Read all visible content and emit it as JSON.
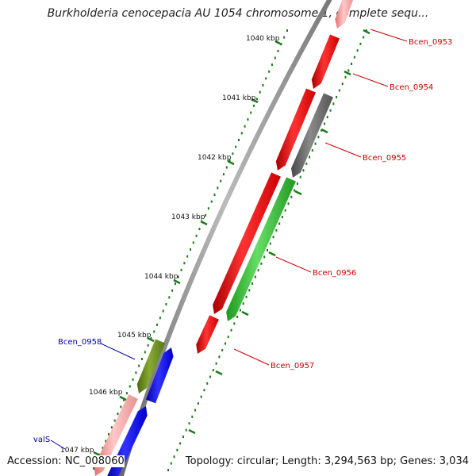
{
  "title": "Burkholderia cenocepacia AU 1054 chromosome 1, complete sequ...",
  "footer": {
    "accession_label": "Accession:",
    "accession": "NC_008060",
    "topology_text": "Topology: circular; Length: 3,294,563 bp; Genes: 3,034"
  },
  "colors": {
    "backbone": "#888888",
    "tick": "#1a7a1a",
    "label_forward": "#cc0000",
    "label_reverse": "#0000aa",
    "red_gene": "#ee1111",
    "light_red_gene": "#f4a0a0",
    "gray_gene": "#707070",
    "green_gene": "#33bb33",
    "olive_gene": "#668822",
    "blue_gene": "#1111ee"
  },
  "ticks": [
    {
      "label": "1040 kbp"
    },
    {
      "label": "1041 kbp"
    },
    {
      "label": "1042 kbp"
    },
    {
      "label": "1043 kbp"
    },
    {
      "label": "1044 kbp"
    },
    {
      "label": "1045 kbp"
    },
    {
      "label": "1046 kbp"
    },
    {
      "label": "1047 kbp"
    }
  ],
  "genes": [
    {
      "name": "Bcen_0953",
      "strand": "forward",
      "color": "light_red_gene"
    },
    {
      "name": "Bcen_0954",
      "strand": "forward",
      "color": "red_gene"
    },
    {
      "name": "Bcen_0955",
      "strand": "forward",
      "color": "gray_gene"
    },
    {
      "name": "Bcen_0956",
      "strand": "forward",
      "color": "green_gene"
    },
    {
      "name": "Bcen_0957",
      "strand": "forward",
      "color": "red_gene"
    },
    {
      "name": "Bcen_0958",
      "strand": "reverse",
      "color": "olive_gene"
    },
    {
      "name": "valS",
      "strand": "reverse",
      "color": "light_red_gene"
    }
  ]
}
